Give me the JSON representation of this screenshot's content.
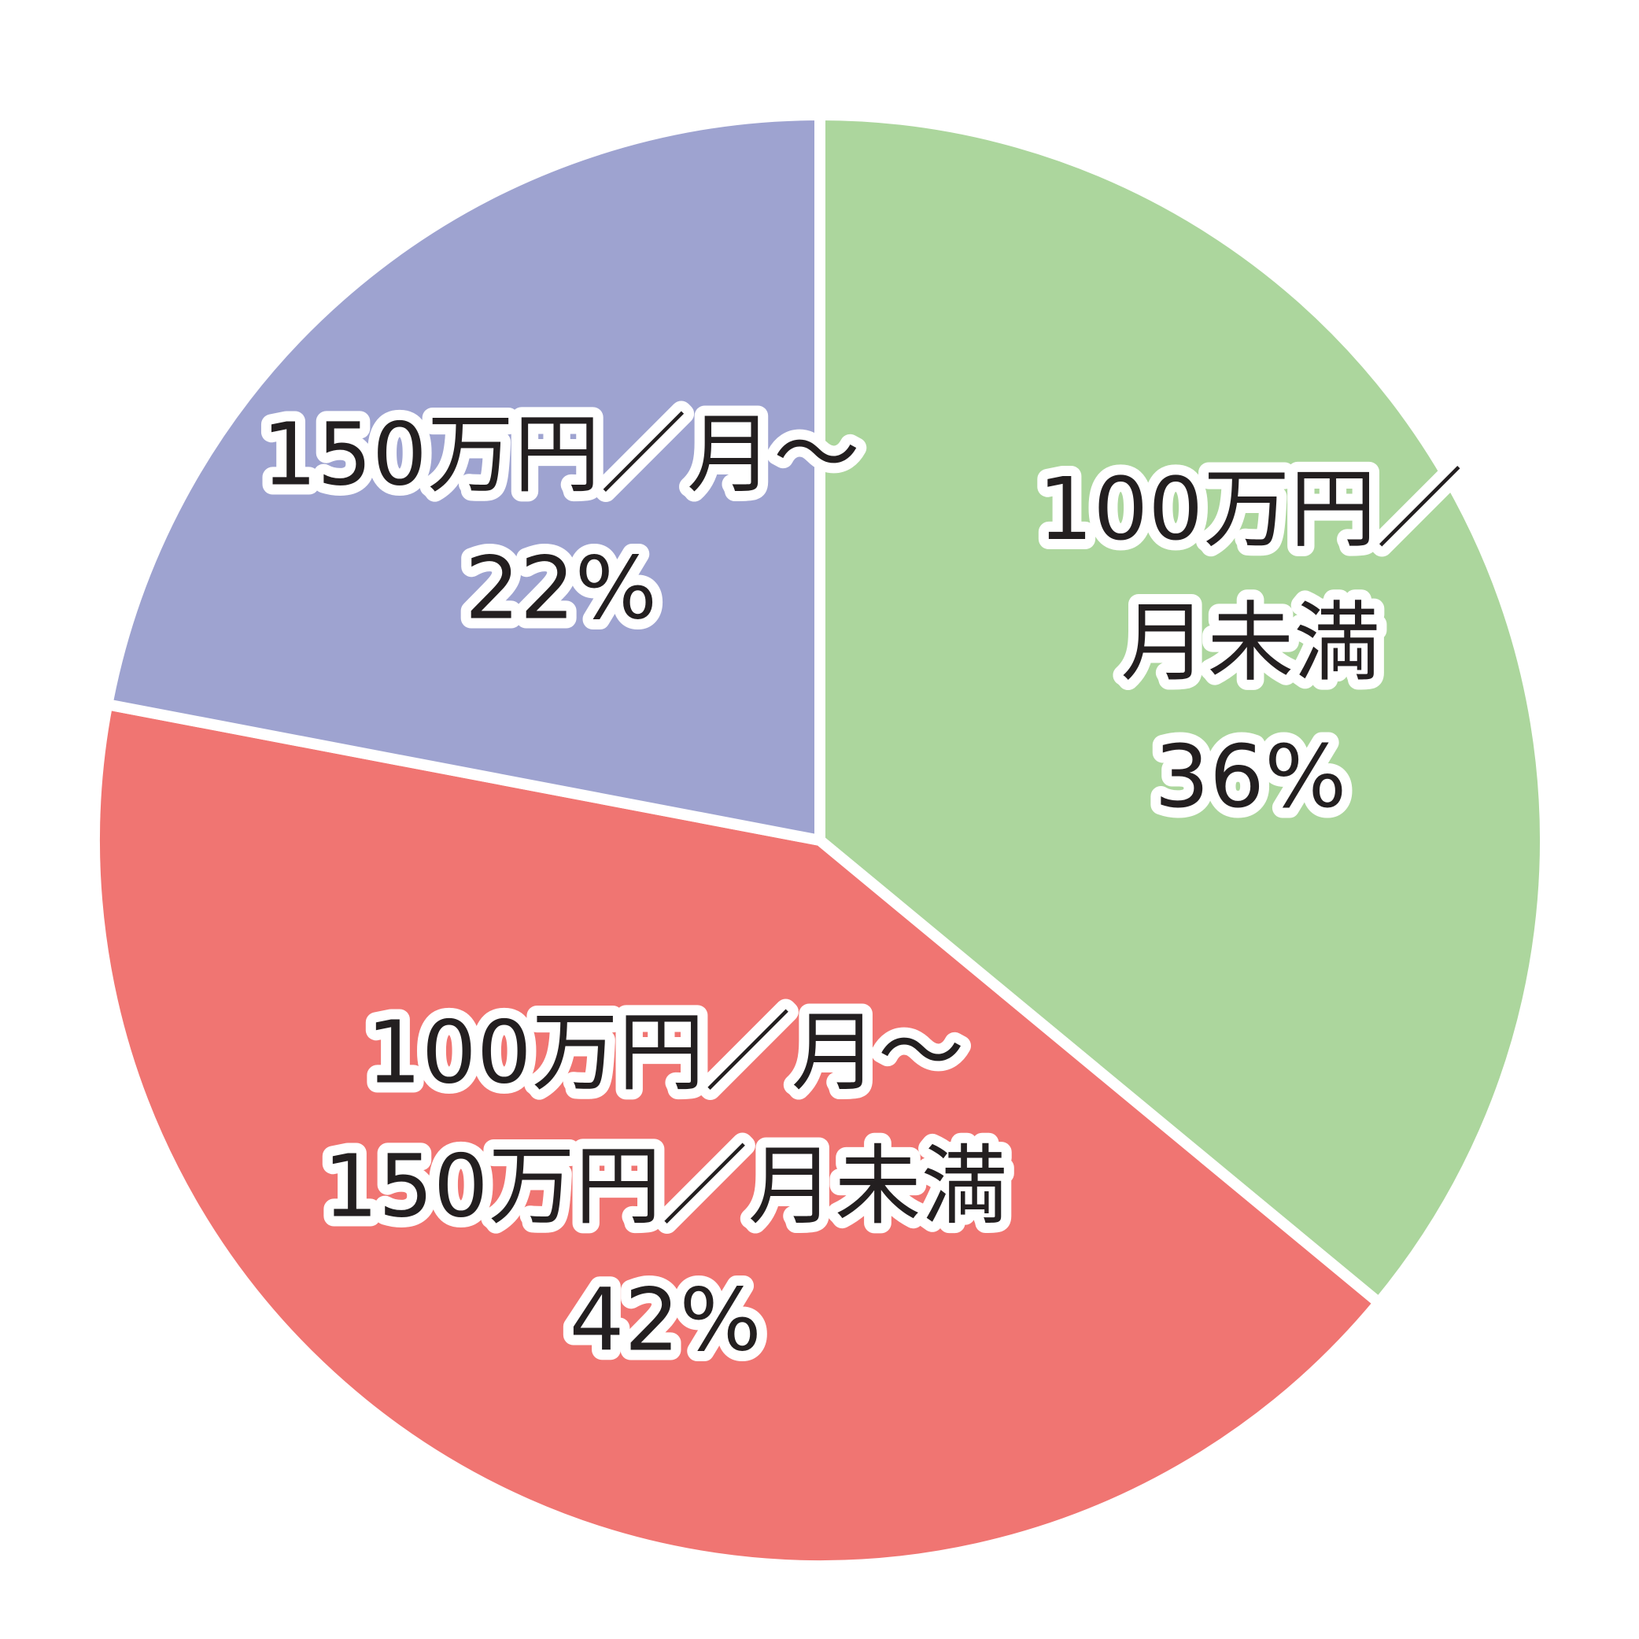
{
  "chart_data": {
    "type": "pie",
    "slices": [
      {
        "label_lines": [
          "100万円／",
          "月未満"
        ],
        "percent_label": "36%",
        "value": 36,
        "color": "#acd69d"
      },
      {
        "label_lines": [
          "100万円／月〜",
          "150万円／月未満"
        ],
        "percent_label": "42%",
        "value": 42,
        "color": "#f07572"
      },
      {
        "label_lines": [
          "150万円／月〜"
        ],
        "percent_label": "22%",
        "value": 22,
        "color": "#9ea3d0"
      }
    ],
    "legend": "none",
    "slice_border_color": "#ffffff"
  }
}
